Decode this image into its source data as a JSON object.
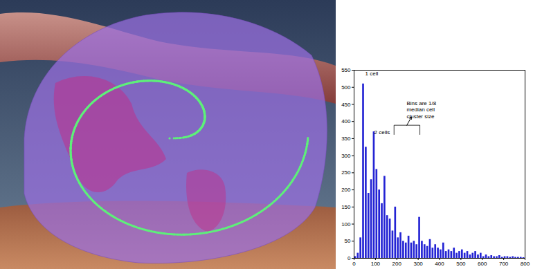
{
  "chart_data": {
    "type": "histogram",
    "bins": [
      0,
      12.5,
      25,
      37.5,
      50,
      62.5,
      75,
      87.5,
      100,
      112.5,
      125,
      137.5,
      150,
      162.5,
      175,
      187.5,
      200,
      212.5,
      225,
      237.5,
      250,
      262.5,
      275,
      287.5,
      300,
      312.5,
      325,
      337.5,
      350,
      362.5,
      375,
      387.5,
      400,
      412.5,
      425,
      437.5,
      450,
      462.5,
      475,
      487.5,
      500,
      512.5,
      525,
      537.5,
      550,
      562.5,
      575,
      587.5,
      600,
      612.5,
      625,
      637.5,
      650,
      662.5,
      675,
      687.5,
      700,
      712.5,
      725,
      737.5,
      750,
      762.5,
      775,
      787.5,
      800
    ],
    "values": [
      5,
      15,
      60,
      510,
      325,
      190,
      230,
      370,
      260,
      200,
      160,
      240,
      125,
      115,
      80,
      150,
      60,
      75,
      50,
      45,
      65,
      45,
      50,
      40,
      120,
      50,
      40,
      35,
      55,
      30,
      40,
      30,
      25,
      45,
      20,
      25,
      20,
      30,
      15,
      20,
      25,
      15,
      20,
      10,
      15,
      20,
      10,
      15,
      5,
      10,
      5,
      8,
      5,
      5,
      8,
      3,
      5,
      5,
      3,
      5,
      3,
      3,
      3,
      2
    ],
    "color": "#2424d4",
    "xlim": [
      0,
      800
    ],
    "xticks": [
      0,
      100,
      200,
      300,
      400,
      500,
      600,
      700,
      800
    ],
    "ylim": [
      0,
      550
    ],
    "yticks": [
      0,
      50,
      100,
      150,
      200,
      250,
      300,
      350,
      400,
      450,
      500,
      550
    ],
    "grid": false,
    "annotations": [
      {
        "text": "1 cell",
        "x": 52,
        "y": 540
      },
      {
        "text": "2 cells",
        "x": 94,
        "y": 368
      },
      {
        "text": "Bins are 1/8\nmedian cell\ncluster size",
        "x": 246,
        "y": 435
      }
    ]
  }
}
